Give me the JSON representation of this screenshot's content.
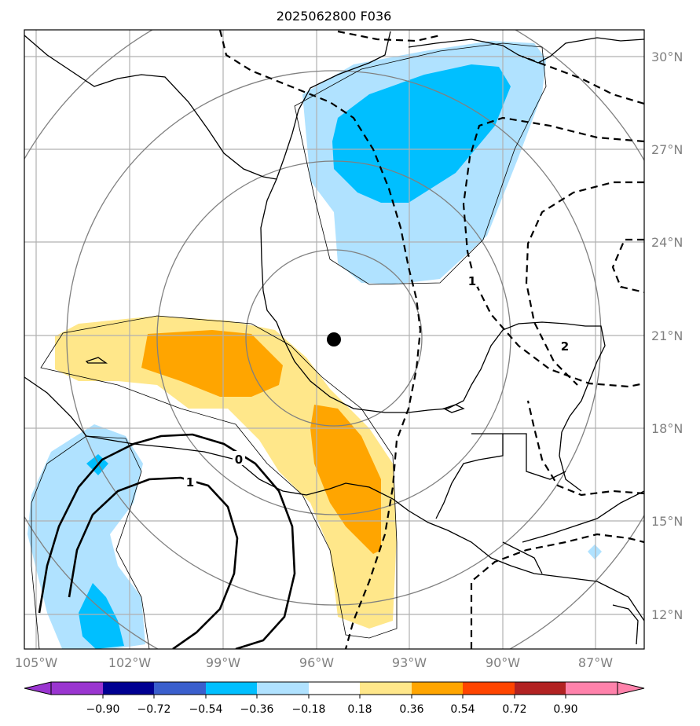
{
  "title": "2025062800 F036",
  "lat_labels": [
    "30°N",
    "27°N",
    "24°N",
    "21°N",
    "18°N",
    "15°N",
    "12°N"
  ],
  "lon_labels": [
    "105°W",
    "102°W",
    "99°W",
    "96°W",
    "93°W",
    "90°W",
    "87°W"
  ],
  "contour_labels": {
    "solid_zero": "0",
    "solid_one": "1",
    "dashed_one": "1",
    "dashed_two": "2"
  },
  "storm_marker": "storm-center",
  "colorbar": {
    "ticks": [
      "−0.90",
      "−0.72",
      "−0.54",
      "−0.36",
      "−0.18",
      "0.18",
      "0.36",
      "0.54",
      "0.72",
      "0.90"
    ],
    "colors": [
      "#9a35d0",
      "#000092",
      "#3a5fcd",
      "#00bfff",
      "#b0e2ff",
      "#ffffff",
      "#ffe78a",
      "#ffa500",
      "#ff4500",
      "#b22222",
      "#ff82ab"
    ]
  },
  "fill_colors": {
    "light_blue": "#b0e2ff",
    "blue": "#00bfff",
    "yellow": "#ffe78a",
    "orange": "#ffa500"
  }
}
